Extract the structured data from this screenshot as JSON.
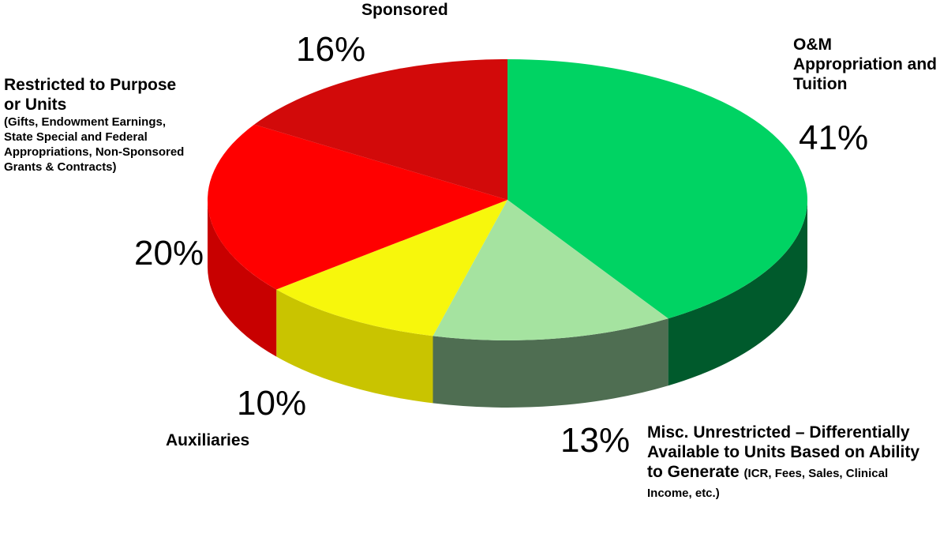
{
  "chart_data": {
    "type": "pie3d",
    "categories": [
      "O&M Appropriation and Tuition",
      "Misc. Unrestricted – Differentially Available to Units Based on Ability to Generate",
      "Auxiliaries",
      "Restricted to Purpose or Units",
      "Sponsored"
    ],
    "category_details": [
      null,
      "(ICR, Fees, Sales, Clinical Income, etc.)",
      null,
      "(Gifts, Endowment Earnings, State Special and Federal Appropriations, Non-Sponsored Grants & Contracts)",
      null
    ],
    "values": [
      41,
      13,
      10,
      20,
      16
    ],
    "value_labels": [
      "41%",
      "13%",
      "10%",
      "20%",
      "16%"
    ],
    "colors": [
      "#00d363",
      "#a5e3a0",
      "#f7f70c",
      "#ff0000",
      "#d20a0a"
    ],
    "side_colors": [
      "#005a2c",
      "#4f6e52",
      "#c9c400",
      "#c80000",
      "#a00000"
    ]
  }
}
